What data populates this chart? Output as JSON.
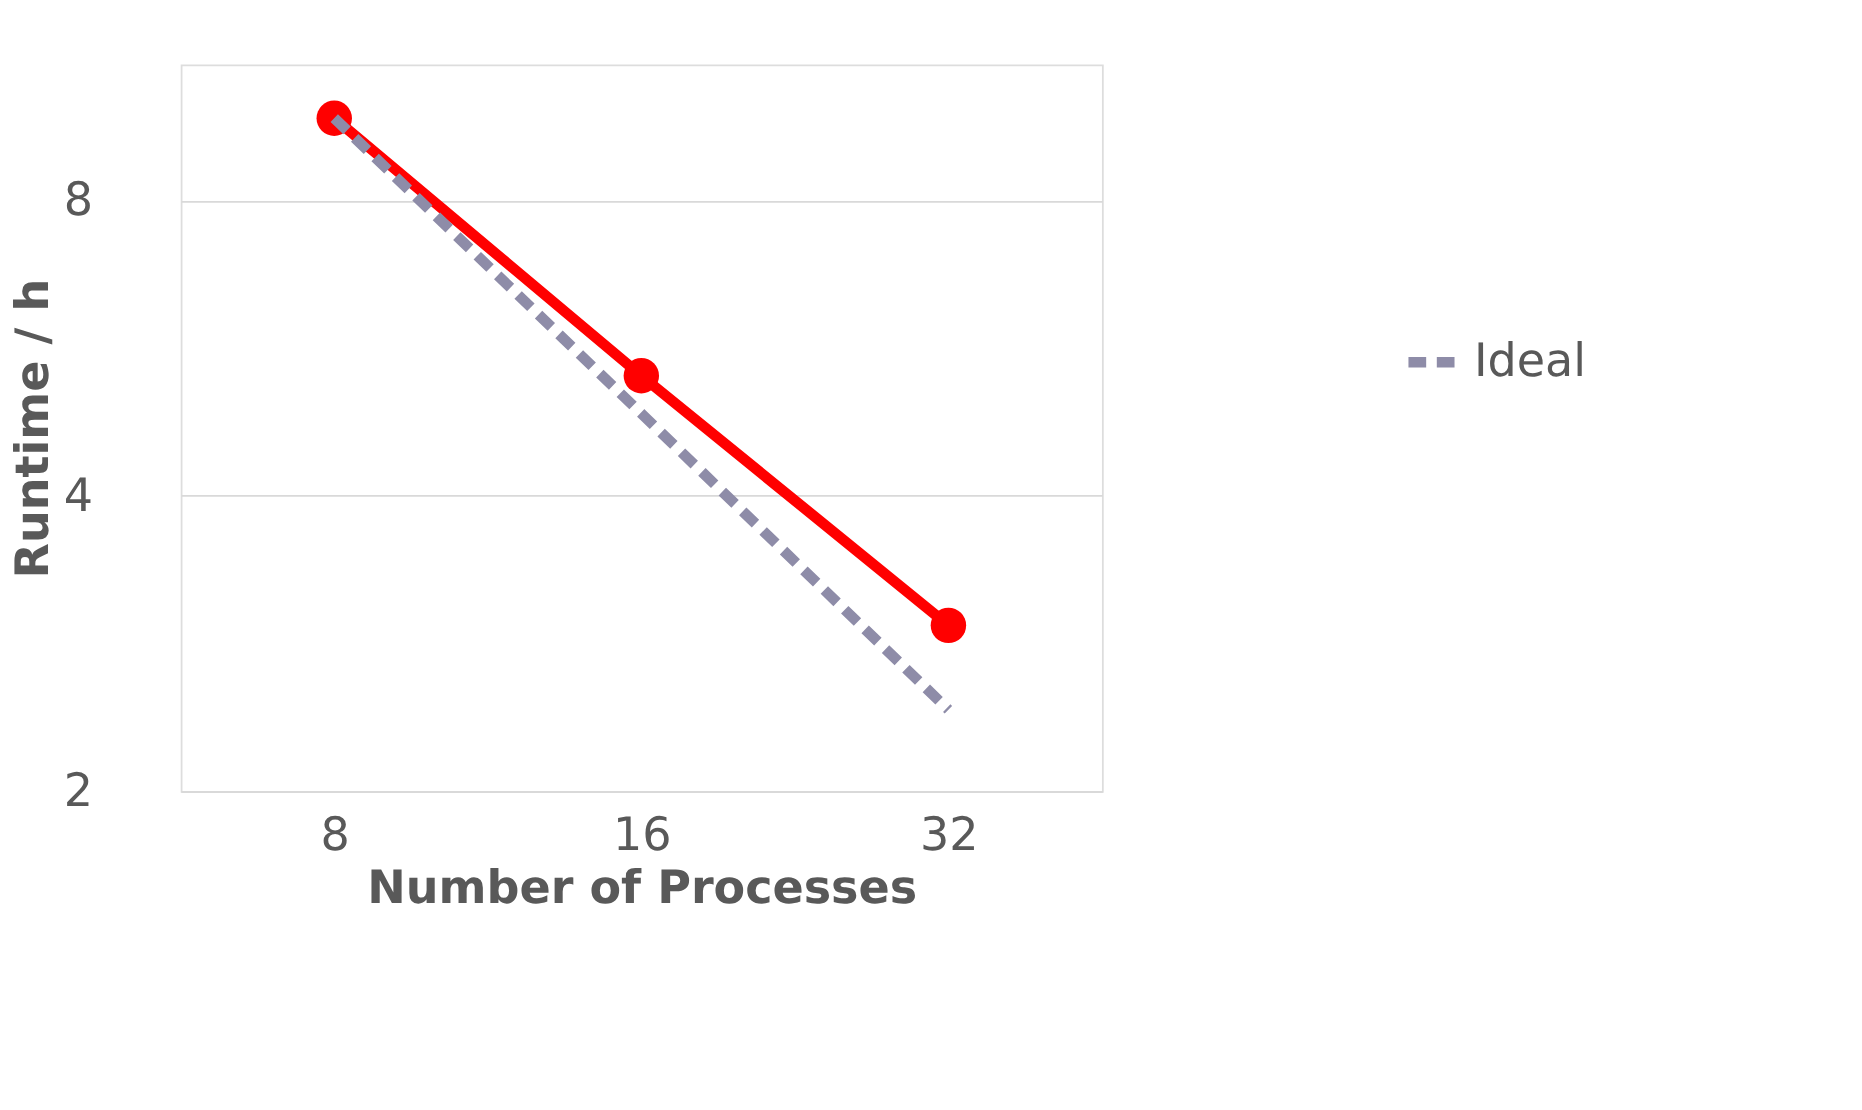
{
  "chart_data": {
    "type": "line",
    "xlabel": "Number of Processes",
    "ylabel": "Runtime / h",
    "categories": [
      "8",
      "16",
      "32"
    ],
    "series": [
      {
        "color": "#ff0000",
        "values": [
          9.7,
          5.3,
          2.95
        ],
        "marker": "circle",
        "line_style": "solid"
      },
      {
        "name": "Ideal",
        "color": "#8e8ca8",
        "values": [
          9.7,
          4.85,
          2.42
        ],
        "marker": "none",
        "line_style": "dashed"
      }
    ],
    "log": true,
    "ylim": [
      2,
      11
    ],
    "yticks": [
      2,
      4,
      8
    ],
    "grid": "y",
    "legend": "right"
  }
}
